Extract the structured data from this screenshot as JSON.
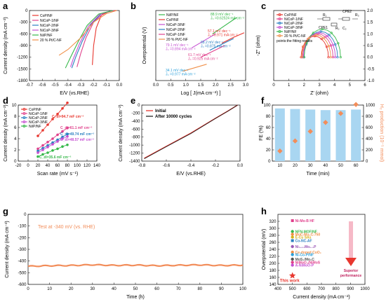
{
  "colors": {
    "CoP/NF": "#e8372f",
    "NiCoP-1/NF": "#e0418c",
    "NiCoP-2/NF": "#2b7fc1",
    "NiCoP-3/NF": "#c54fd1",
    "Ni/P/NF": "#36b84a",
    "20 % Pt/C-NF": "#f0904a",
    "initial": "#e8372f",
    "after": "#222222",
    "bar": "#a9d6f1",
    "h2": "#f28d5a",
    "testline": "#f28d5a"
  },
  "chart_data": [
    {
      "panel": "a",
      "type": "line",
      "xlabel": "E/V (vs.RHE)",
      "ylabel": "Current density (mA cm⁻²)",
      "xlim": [
        -0.7,
        0.0
      ],
      "ylim": [
        -1800,
        0
      ],
      "xticks": [
        "-0.7",
        "-0.6",
        "-0.5",
        "-0.4",
        "-0.3",
        "-0.2",
        "-0.1",
        "0.0"
      ],
      "yticks": [
        "0",
        "-300",
        "-600",
        "-900",
        "-1200",
        "-1500",
        "-1800"
      ],
      "legend_position": "top-left",
      "series": [
        {
          "name": "CoP/NF",
          "points": [
            [
              -0.02,
              0
            ],
            [
              -0.08,
              -20
            ],
            [
              -0.14,
              -120
            ],
            [
              -0.18,
              -450
            ],
            [
              -0.2,
              -900
            ],
            [
              -0.21,
              -1400
            ]
          ]
        },
        {
          "name": "NiCoP-1/NF",
          "points": [
            [
              -0.04,
              0
            ],
            [
              -0.12,
              -60
            ],
            [
              -0.2,
              -300
            ],
            [
              -0.26,
              -700
            ],
            [
              -0.3,
              -1100
            ],
            [
              -0.33,
              -1450
            ]
          ]
        },
        {
          "name": "NiCoP-2/NF",
          "points": [
            [
              -0.05,
              0
            ],
            [
              -0.14,
              -80
            ],
            [
              -0.22,
              -350
            ],
            [
              -0.29,
              -800
            ],
            [
              -0.34,
              -1200
            ],
            [
              -0.37,
              -1480
            ]
          ]
        },
        {
          "name": "NiCoP-3/NF",
          "points": [
            [
              -0.05,
              0
            ],
            [
              -0.15,
              -90
            ],
            [
              -0.24,
              -400
            ],
            [
              -0.31,
              -850
            ],
            [
              -0.36,
              -1250
            ],
            [
              -0.38,
              -1450
            ]
          ]
        },
        {
          "name": "Ni/P/NF",
          "points": [
            [
              -0.05,
              0
            ],
            [
              -0.16,
              -90
            ],
            [
              -0.25,
              -380
            ],
            [
              -0.32,
              -800
            ],
            [
              -0.38,
              -1200
            ],
            [
              -0.42,
              -1480
            ]
          ]
        },
        {
          "name": "20 % Pt/C-NF",
          "points": [
            [
              -0.02,
              0
            ],
            [
              -0.1,
              -80
            ],
            [
              -0.2,
              -300
            ],
            [
              -0.3,
              -700
            ],
            [
              -0.4,
              -1000
            ],
            [
              -0.47,
              -1150
            ]
          ]
        }
      ]
    },
    {
      "panel": "b",
      "type": "line",
      "xlabel": "Log [ J(mA cm⁻²) ]",
      "ylabel": "Overpotential (V)",
      "xlim": [
        0.0,
        3.0
      ],
      "ylim": [
        0.0,
        0.3
      ],
      "xticks": [
        "0.0",
        "0.5",
        "1.0",
        "1.5",
        "2.0",
        "2.5",
        "3.0"
      ],
      "legend_position": "top-left",
      "annotations": [
        {
          "slope": "88.9 mV dec⁻¹",
          "j0": "J₀ =0.62524 mA cm⁻²",
          "color": "#36b84a"
        },
        {
          "slope": "57.1 mV dec⁻¹",
          "j0": "J₀ =0.971 mA cm⁻²",
          "color": "#e8372f"
        },
        {
          "slope": "79.1 mV dec⁻¹",
          "j0": "J₀ =0.894 mA cm⁻²",
          "color": "#c54fd1"
        },
        {
          "slope": "68.2 mV dec⁻¹",
          "j0": "J₀ =0.875 mA cm⁻²",
          "color": "#2b7fc1"
        },
        {
          "slope": "61.7 mV dec⁻¹",
          "j0": "J₀ =0.925 mA cm⁻²",
          "color": "#e0418c"
        },
        {
          "slope": "34.1 mV dec⁻¹",
          "j0": "J₀ =0.977 mA cm⁻²",
          "color": "#2b9fd9"
        }
      ],
      "series": [
        {
          "name": "Ni/P/NF",
          "points": [
            [
              1.9,
              0.2
            ],
            [
              2.3,
              0.235
            ],
            [
              2.7,
              0.27
            ]
          ]
        },
        {
          "name": "CoP/NF",
          "points": [
            [
              2.2,
              0.16
            ],
            [
              2.6,
              0.185
            ],
            [
              2.95,
              0.205
            ]
          ]
        },
        {
          "name": "NiCoP-3/NF",
          "points": [
            [
              1.2,
              0.14
            ],
            [
              1.6,
              0.17
            ],
            [
              2.0,
              0.2
            ]
          ]
        },
        {
          "name": "NiCoP-2/NF",
          "points": [
            [
              1.8,
              0.13
            ],
            [
              2.2,
              0.155
            ],
            [
              2.6,
              0.18
            ]
          ]
        },
        {
          "name": "NiCoP-1/NF",
          "points": [
            [
              1.5,
              0.1
            ],
            [
              1.9,
              0.125
            ],
            [
              2.3,
              0.15
            ]
          ]
        },
        {
          "name": "20 % Pt/C-NF",
          "points": [
            [
              0.9,
              0.04
            ],
            [
              1.3,
              0.055
            ],
            [
              1.7,
              0.07
            ]
          ]
        }
      ]
    },
    {
      "panel": "c",
      "type": "scatter",
      "xlabel": "Z' (ohm)",
      "ylabel": "-Z'' (ohm)",
      "xlim": [
        0,
        6
      ],
      "ylim": [
        -1.0,
        2.0
      ],
      "xticks": [
        "0",
        "1",
        "2",
        "3",
        "4",
        "5",
        "6"
      ],
      "yticks": [
        "-1.0",
        "-0.5",
        "0.0",
        "0.5",
        "1.0",
        "1.5",
        "2.0"
      ],
      "note": "points:the fitting results",
      "circuit_labels": [
        "R₁",
        "CPE2",
        "CPE1",
        "R₂",
        "R₃",
        "C₂"
      ],
      "series": [
        {
          "name": "CoP/NF",
          "center": 2.7,
          "radius": 0.9
        },
        {
          "name": "NiCoP-1/NF",
          "center": 2.9,
          "radius": 1.0
        },
        {
          "name": "NiCoP-2/NF",
          "center": 3.1,
          "radius": 1.1
        },
        {
          "name": "NiCoP-3/NF",
          "center": 3.0,
          "radius": 1.05
        },
        {
          "name": "Ni/P/NF",
          "center": 3.2,
          "radius": 1.2
        },
        {
          "name": "20 % Pt/C-NF",
          "center": 2.8,
          "radius": 0.95
        }
      ]
    },
    {
      "panel": "d",
      "type": "scatter",
      "xlabel": "Scan rate (mV s⁻¹)",
      "ylabel": "Current density (mA cm⁻²)",
      "xlim": [
        -20,
        140
      ],
      "ylim": [
        0,
        10
      ],
      "xticks": [
        "-20",
        "0",
        "20",
        "40",
        "60",
        "80",
        "100",
        "120",
        "140"
      ],
      "yticks": [
        "0",
        "2",
        "4",
        "6",
        "8",
        "10"
      ],
      "series": [
        {
          "name": "CoP/NF",
          "cdl": "C_dl=94.7 mF cm⁻²",
          "x": [
            20,
            30,
            40,
            50,
            60,
            70,
            80
          ],
          "y": [
            4.5,
            5.5,
            6.5,
            7.5,
            8.4,
            9.4,
            10.4
          ]
        },
        {
          "name": "NiCoP-1/NF",
          "cdl": "C_dl=61.1 mF cm⁻²",
          "x": [
            20,
            30,
            40,
            50,
            60,
            70,
            80
          ],
          "y": [
            2.2,
            2.8,
            3.4,
            4.0,
            4.7,
            5.3,
            5.9
          ]
        },
        {
          "name": "NiCoP-2/NF",
          "cdl": "C_dl=49.74 mF cm⁻²",
          "x": [
            20,
            30,
            40,
            50,
            60,
            70,
            80
          ],
          "y": [
            1.8,
            2.3,
            2.8,
            3.3,
            3.8,
            4.3,
            4.8
          ]
        },
        {
          "name": "NiCoP-3/NF",
          "cdl": "C_dl=48.57 mF cm⁻²",
          "x": [
            20,
            30,
            40,
            50,
            60,
            70,
            80
          ],
          "y": [
            1.5,
            2.0,
            2.5,
            3.0,
            3.5,
            4.0,
            4.4
          ]
        },
        {
          "name": "Ni/P/NF",
          "cdl": "C_dl=35.6 mF cm⁻²",
          "x": [
            20,
            30,
            40,
            50,
            60,
            70,
            80
          ],
          "y": [
            0.8,
            1.2,
            1.5,
            1.9,
            2.2,
            2.6,
            2.9
          ]
        }
      ]
    },
    {
      "panel": "e",
      "type": "line",
      "xlabel": "E/V (vs.RHE)",
      "ylabel": "Current density (mA cm⁻²)",
      "xlim": [
        -0.8,
        0.0
      ],
      "ylim": [
        -1400,
        0
      ],
      "xticks": [
        "-0.8",
        "-0.6",
        "-0.4",
        "-0.2",
        "0.0"
      ],
      "yticks": [
        "0",
        "-200",
        "-400",
        "-600",
        "-800",
        "-1000",
        "-1200",
        "-1400"
      ],
      "series": [
        {
          "name": "Initial",
          "points": [
            [
              -0.78,
              -1330
            ],
            [
              -0.6,
              -1030
            ],
            [
              -0.4,
              -700
            ],
            [
              -0.2,
              -330
            ],
            [
              -0.1,
              -150
            ],
            [
              -0.02,
              0
            ]
          ]
        },
        {
          "name": "After 10000 cycles",
          "points": [
            [
              -0.78,
              -1340
            ],
            [
              -0.6,
              -1040
            ],
            [
              -0.4,
              -710
            ],
            [
              -0.2,
              -335
            ],
            [
              -0.1,
              -155
            ],
            [
              -0.02,
              0
            ]
          ]
        }
      ]
    },
    {
      "panel": "f",
      "type": "bar",
      "xlabel": "Time (min)",
      "ylabel": "FE (%)",
      "y2label": "H₂ production (10⁻⁵ mmol)",
      "categories": [
        "10",
        "20",
        "30",
        "40",
        "50",
        "60"
      ],
      "values": [
        94,
        93,
        92,
        91,
        91,
        92
      ],
      "ylim": [
        0,
        100
      ],
      "y2lim": [
        0,
        1000
      ],
      "yticks": [
        "0",
        "20",
        "40",
        "60",
        "80",
        "100"
      ],
      "y2ticks": [
        "0",
        "200",
        "400",
        "600",
        "800",
        "1000"
      ],
      "h2_production": [
        180,
        360,
        530,
        690,
        850,
        1010
      ]
    },
    {
      "panel": "g",
      "type": "line",
      "annotation": "Test at -340 mV (vs. RHE)",
      "xlabel": "Time (h)",
      "ylabel": "Current density (mA cm⁻²)",
      "xlim": [
        0,
        100
      ],
      "ylim": [
        -600,
        0
      ],
      "xticks": [
        "0",
        "10",
        "20",
        "30",
        "40",
        "50",
        "60",
        "70",
        "80",
        "90",
        "100"
      ],
      "yticks": [
        "0",
        "-100",
        "-200",
        "-300",
        "-400",
        "-500",
        "-600"
      ],
      "series": [
        {
          "name": "stability",
          "points": [
            [
              0,
              -445
            ],
            [
              10,
              -440
            ],
            [
              20,
              -438
            ],
            [
              30,
              -432
            ],
            [
              40,
              -437
            ],
            [
              50,
              -435
            ],
            [
              60,
              -440
            ],
            [
              70,
              -436
            ],
            [
              80,
              -433
            ],
            [
              90,
              -438
            ],
            [
              100,
              -435
            ]
          ]
        }
      ]
    },
    {
      "panel": "h",
      "type": "scatter",
      "xlabel": "Current density (mA cm⁻²)",
      "ylabel": "Overpotential (mV)",
      "xlim": [
        400,
        1000
      ],
      "ylim": [
        140,
        340
      ],
      "xticks": [
        "400",
        "500",
        "600",
        "700",
        "800",
        "900",
        "1000"
      ],
      "yticks": [
        "140",
        "160",
        "180",
        "200",
        "220",
        "240",
        "260",
        "280",
        "300",
        "320"
      ],
      "arrow_label": "Superior performance",
      "highlight": "This work",
      "points": [
        {
          "label": "Ni-Mo-B HF",
          "x": 500,
          "y": 322,
          "color": "#e0418c",
          "shape": "square"
        },
        {
          "label": "NFN-MOF/NF",
          "x": 500,
          "y": 291,
          "color": "#36b84a",
          "shape": "circle"
        },
        {
          "label": "MoC-Mo₂C-750",
          "x": 500,
          "y": 283,
          "color": "#f0904a",
          "shape": "circle"
        },
        {
          "label": "E-Cu SAs",
          "x": 500,
          "y": 275,
          "color": "#d4b21c",
          "shape": "circle"
        },
        {
          "label": "Co-NC-AF",
          "x": 500,
          "y": 265,
          "color": "#2b7fc1",
          "shape": "square"
        },
        {
          "label": "Ni₂.₄₃Mo₀.₃P",
          "x": 500,
          "y": 248,
          "color": "#9b59b6",
          "shape": "circle"
        },
        {
          "label": "Ce-doped CoO₂",
          "x": 500,
          "y": 232,
          "color": "#f0904a",
          "shape": "circle"
        },
        {
          "label": "Ni-Co-P/NF",
          "x": 500,
          "y": 225,
          "color": "#2b9fd9",
          "shape": "circle"
        },
        {
          "label": "MoS₂/Mo₂C",
          "x": 500,
          "y": 212,
          "color": "#555555",
          "shape": "circle"
        },
        {
          "label": "NiMoO₄/NiMoS",
          "x": 500,
          "y": 203,
          "color": "#e0418c",
          "shape": "circle"
        },
        {
          "label": "A-NiMoO-P",
          "x": 500,
          "y": 195,
          "color": "#c54fd1",
          "shape": "circle"
        },
        {
          "label": "This work",
          "x": 500,
          "y": 165,
          "color": "#e8372f",
          "shape": "star"
        }
      ]
    }
  ]
}
